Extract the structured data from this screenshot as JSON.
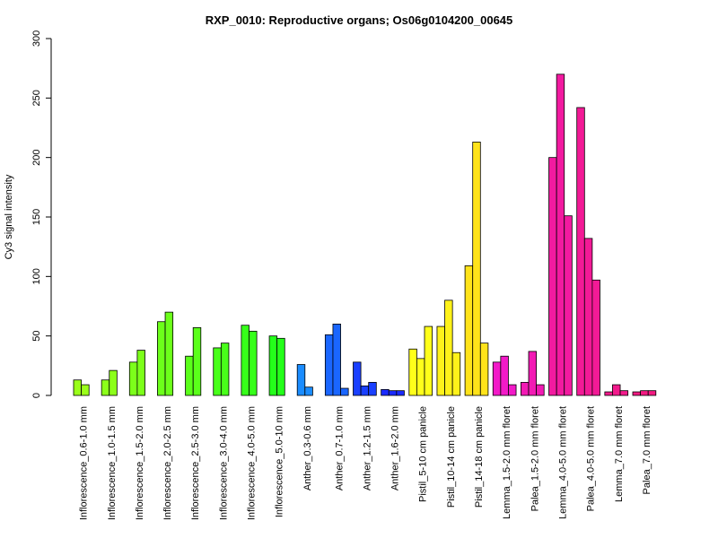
{
  "chart_data": {
    "type": "bar",
    "title": "RXP_0010: Reproductive organs; Os06g0104200_00645",
    "ylabel": "Cy3 signal intensity",
    "xlabel": "",
    "ylim": [
      0,
      300
    ],
    "yticks": [
      0,
      50,
      100,
      150,
      200,
      250,
      300
    ],
    "grid": false,
    "legend": "none",
    "groups": [
      {
        "label": "Inflorescence_0.6-1.0 mm",
        "color": "#9AFF1A",
        "values": [
          13,
          9
        ]
      },
      {
        "label": "Inflorescence_1.0-1.5 mm",
        "color": "#8CFF1A",
        "values": [
          13,
          21
        ]
      },
      {
        "label": "Inflorescence_1.5-2.0 mm",
        "color": "#7CFF1A",
        "values": [
          28,
          38
        ]
      },
      {
        "label": "Inflorescence_2.0-2.5 mm",
        "color": "#6CFF1A",
        "values": [
          62,
          70
        ]
      },
      {
        "label": "Inflorescence_2.5-3.0 mm",
        "color": "#5AFF1A",
        "values": [
          33,
          57
        ]
      },
      {
        "label": "Inflorescence_3.0-4.0 mm",
        "color": "#48FF1A",
        "values": [
          40,
          44
        ]
      },
      {
        "label": "Inflorescence_4.0-5.0 mm",
        "color": "#36FF1A",
        "values": [
          59,
          54
        ]
      },
      {
        "label": "Inflorescence_5.0-10 mm",
        "color": "#24FF1A",
        "values": [
          50,
          48
        ]
      },
      {
        "label": "Anther_0.3-0.6 mm",
        "color": "#1A8CFF",
        "values": [
          26,
          7
        ]
      },
      {
        "label": "Anther_0.7-1.0 mm",
        "color": "#1A66FF",
        "values": [
          51,
          60,
          6
        ]
      },
      {
        "label": "Anther_1.2-1.5 mm",
        "color": "#1A40FF",
        "values": [
          28,
          8,
          11
        ]
      },
      {
        "label": "Anther_1.6-2.0 mm",
        "color": "#1A2AFF",
        "values": [
          5,
          4,
          4
        ]
      },
      {
        "label": "Pistil_5-10 cm panicle",
        "color": "#FFFF1A",
        "values": [
          39,
          31,
          58
        ]
      },
      {
        "label": "Pistil_10-14 cm panicle",
        "color": "#FFF21A",
        "values": [
          58,
          80,
          36
        ]
      },
      {
        "label": "Pistil_14-18 cm panicle",
        "color": "#FFE31A",
        "values": [
          109,
          213,
          44
        ]
      },
      {
        "label": "Lemma_1.5-2.0 mm floret",
        "color": "#F21AC8",
        "values": [
          28,
          33,
          9
        ]
      },
      {
        "label": "Palea_1.5-2.0 mm floret",
        "color": "#F21AB4",
        "values": [
          11,
          37,
          9
        ]
      },
      {
        "label": "Lemma_4.0-5.0 mm floret",
        "color": "#F21AA0",
        "values": [
          200,
          270,
          151
        ]
      },
      {
        "label": "Palea_4.0-5.0 mm floret",
        "color": "#F21A96",
        "values": [
          242,
          132,
          97
        ]
      },
      {
        "label": "Lemma_7.0 mm floret",
        "color": "#F21A8C",
        "values": [
          3,
          9,
          4
        ]
      },
      {
        "label": "Palea_7.0 mm floret",
        "color": "#F21A82",
        "values": [
          3,
          4,
          4
        ]
      }
    ]
  }
}
